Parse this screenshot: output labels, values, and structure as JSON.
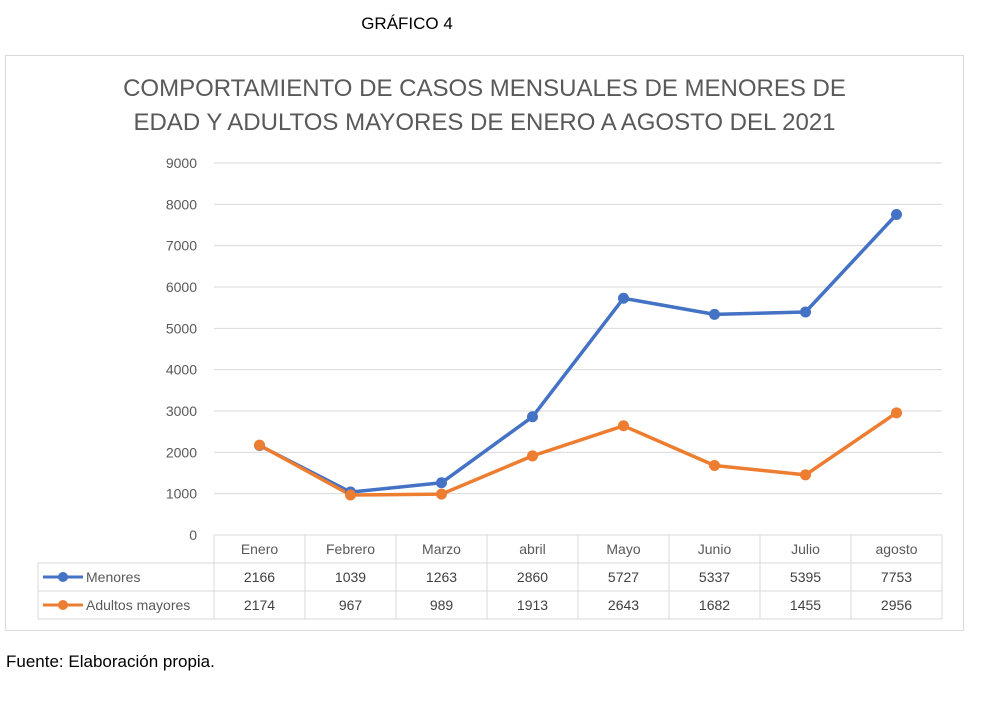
{
  "heading": "GRÁFICO 4",
  "source_note": "Fuente: Elaboración propia.",
  "chart_data": {
    "type": "line",
    "title_line1": "COMPORTAMIENTO DE CASOS MENSUALES DE MENORES DE",
    "title_line2": "EDAD Y ADULTOS MAYORES DE ENERO A AGOSTO DEL 2021",
    "categories": [
      "Enero",
      "Febrero",
      "Marzo",
      "abril",
      "Mayo",
      "Junio",
      "Julio",
      "agosto"
    ],
    "series": [
      {
        "name": "Menores",
        "color": "#4472c4",
        "values": [
          2166,
          1039,
          1263,
          2860,
          5727,
          5337,
          5395,
          7753
        ]
      },
      {
        "name": "Adultos mayores",
        "color": "#ed7d31",
        "values": [
          2174,
          967,
          989,
          1913,
          2643,
          1682,
          1455,
          2956
        ]
      }
    ],
    "ylim": [
      0,
      9000
    ],
    "yticks": [
      0,
      1000,
      2000,
      3000,
      4000,
      5000,
      6000,
      7000,
      8000,
      9000
    ],
    "grid": true,
    "legend": "data-table"
  }
}
